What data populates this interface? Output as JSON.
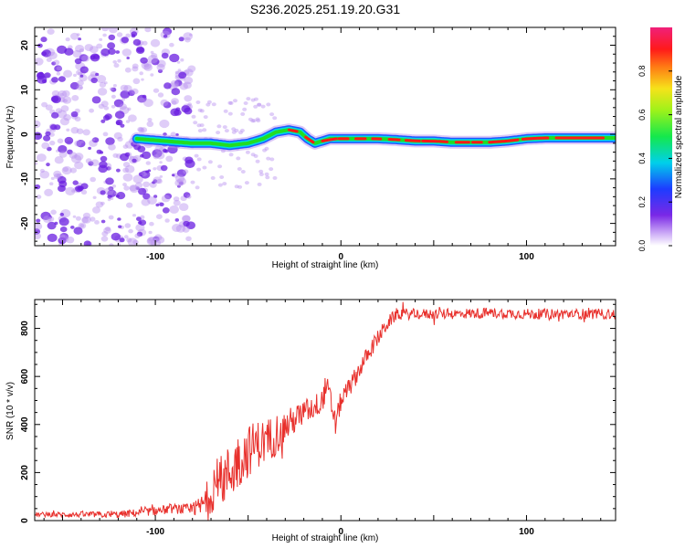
{
  "title": "S236.2025.251.19.20.G31",
  "colors": {
    "snr_line": "#e8302c",
    "ridge_core": "#ff1a1a",
    "ridge_mid": "#22dd22",
    "ridge_outer": "#00d8e8",
    "ridge_edge": "#2255ff",
    "noise": "#6a1ee0",
    "noise_light": "#b890f0"
  },
  "chart_data": [
    {
      "type": "heatmap",
      "title": "S236.2025.251.19.20.G31",
      "xlabel": "Height of straight line (km)",
      "ylabel": "Frequency (Hz)",
      "xlim": [
        -165,
        148
      ],
      "ylim": [
        -25,
        24
      ],
      "xticks": [
        "-100",
        "0",
        "100"
      ],
      "yticks": [
        "20",
        "10",
        "0",
        "-10",
        "-20"
      ],
      "ridge": {
        "x": [
          -110,
          -95,
          -80,
          -70,
          -60,
          -50,
          -42,
          -35,
          -28,
          -22,
          -18,
          -14,
          -10,
          -6,
          0,
          10,
          20,
          30,
          40,
          50,
          60,
          70,
          80,
          90,
          100,
          110,
          120,
          130,
          140,
          148
        ],
        "freq": [
          -1.0,
          -1.5,
          -2.0,
          -2.0,
          -2.5,
          -2.0,
          -1.0,
          0.5,
          1.0,
          0.5,
          -1.0,
          -2.0,
          -1.5,
          -1.0,
          -1.0,
          -1.0,
          -1.0,
          -1.2,
          -1.5,
          -1.5,
          -1.8,
          -1.8,
          -1.8,
          -1.5,
          -1.0,
          -0.8,
          -0.8,
          -0.8,
          -0.8,
          -0.8
        ]
      },
      "colorbar": {
        "label": "Normalized spectral amplitude",
        "range": [
          0,
          1
        ],
        "ticks": [
          "0.0",
          "0.2",
          "0.4",
          "0.6",
          "0.8"
        ]
      }
    },
    {
      "type": "line",
      "xlabel": "Height of straight line (km)",
      "ylabel": "SNR (10 * v/v)",
      "xlim": [
        -165,
        148
      ],
      "ylim": [
        0,
        920
      ],
      "xticks": [
        "-100",
        "0",
        "100"
      ],
      "yticks": [
        "0",
        "200",
        "400",
        "600",
        "800"
      ],
      "series": [
        {
          "name": "SNR",
          "x": [
            -165,
            -140,
            -120,
            -100,
            -90,
            -80,
            -75,
            -70,
            -65,
            -60,
            -55,
            -50,
            -45,
            -40,
            -35,
            -30,
            -25,
            -20,
            -15,
            -10,
            -8,
            -5,
            -3,
            0,
            5,
            10,
            15,
            20,
            25,
            30,
            40,
            60,
            80,
            100,
            120,
            148
          ],
          "y": [
            25,
            25,
            25,
            40,
            50,
            45,
            60,
            120,
            160,
            200,
            250,
            290,
            320,
            330,
            360,
            390,
            420,
            450,
            470,
            500,
            560,
            480,
            400,
            500,
            560,
            630,
            700,
            760,
            820,
            860,
            860,
            860,
            865,
            860,
            860,
            860
          ],
          "noise_amplitude": [
            10,
            12,
            15,
            18,
            20,
            25,
            50,
            90,
            110,
            120,
            120,
            110,
            100,
            95,
            90,
            70,
            60,
            55,
            50,
            50,
            55,
            60,
            50,
            45,
            40,
            40,
            35,
            35,
            30,
            25,
            22,
            22,
            22,
            22,
            22,
            22
          ]
        }
      ]
    }
  ]
}
